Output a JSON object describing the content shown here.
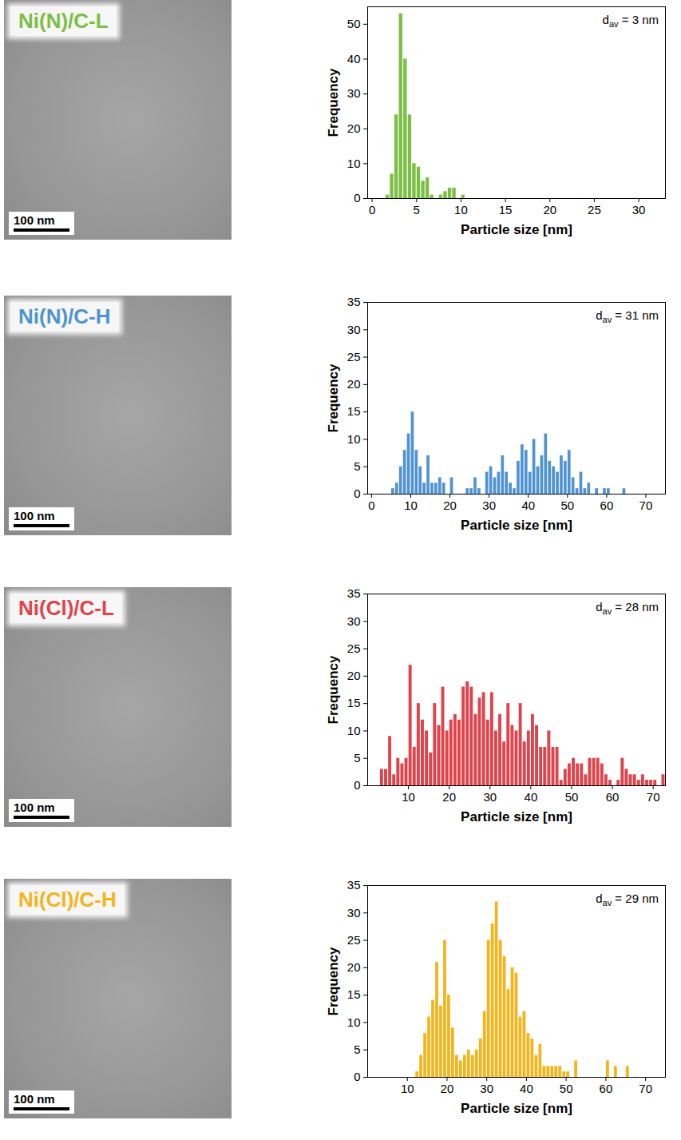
{
  "chart_data": [
    {
      "type": "histogram",
      "title": "Ni(N)/C-L",
      "scale_bar": "100 nm",
      "color": "#7cbf45",
      "x_label": "Particle size [nm]",
      "y_label": "Frequency",
      "annotation": {
        "text": "d",
        "subscript": "av",
        "relation": "=",
        "value": 3,
        "unit": "nm"
      },
      "bins": [
        1.5,
        2.0,
        2.5,
        3.0,
        3.5,
        4.0,
        4.5,
        5.0,
        5.5,
        6.0,
        6.5,
        7.0,
        7.5,
        8.0,
        8.5,
        9.0,
        9.5,
        10.0,
        10.5
      ],
      "values": [
        1,
        7,
        24,
        53,
        40,
        24,
        10,
        9,
        5,
        6,
        1,
        0,
        1,
        2,
        3,
        3,
        0,
        1
      ],
      "xlim": [
        -0.5,
        33
      ],
      "xticks": [
        0,
        5,
        10,
        15,
        20,
        25,
        30
      ],
      "ylim": [
        0,
        55
      ],
      "yticks": [
        0,
        10,
        20,
        30,
        40,
        50
      ]
    },
    {
      "type": "histogram",
      "title": "Ni(N)/C-H",
      "scale_bar": "100 nm",
      "color": "#4f93d2",
      "x_label": "Particle size [nm]",
      "y_label": "Frequency",
      "annotation": {
        "text": "d",
        "subscript": "av",
        "relation": "=",
        "value": 31,
        "unit": "nm"
      },
      "bins": [
        5,
        6,
        7,
        8,
        9,
        10,
        11,
        12,
        13,
        14,
        15,
        16,
        17,
        18,
        19,
        20,
        21,
        22,
        23,
        24,
        25,
        26,
        27,
        28,
        29,
        30,
        31,
        32,
        33,
        34,
        35,
        36,
        37,
        38,
        39,
        40,
        41,
        42,
        43,
        44,
        45,
        46,
        47,
        48,
        49,
        50,
        51,
        52,
        53,
        54,
        55,
        56,
        57,
        58,
        59,
        60,
        61,
        62,
        63,
        64,
        65
      ],
      "values": [
        1,
        2,
        5,
        8,
        11,
        15,
        8,
        5,
        2,
        7,
        2,
        2,
        3,
        2,
        0,
        3,
        0,
        0,
        0,
        1,
        1,
        3,
        1,
        0,
        4,
        5,
        3,
        4,
        7,
        4,
        2,
        1,
        6,
        9,
        8,
        4,
        10,
        5,
        7,
        11,
        6,
        5,
        4,
        7,
        6,
        8,
        3,
        1,
        4,
        1,
        2,
        0,
        1,
        0,
        1,
        1,
        0,
        0,
        0,
        1
      ],
      "xlim": [
        -1,
        75
      ],
      "xticks": [
        0,
        10,
        20,
        30,
        40,
        50,
        60,
        70
      ],
      "ylim": [
        0,
        35
      ],
      "yticks": [
        0,
        5,
        10,
        15,
        20,
        25,
        30,
        35
      ]
    },
    {
      "type": "histogram",
      "title": "Ni(Cl)/C-L",
      "scale_bar": "100 nm",
      "color": "#e0434b",
      "x_label": "Particle size [nm]",
      "y_label": "Frequency",
      "annotation": {
        "text": "d",
        "subscript": "av",
        "relation": "=",
        "value": 28,
        "unit": "nm"
      },
      "bins": [
        3,
        4,
        5,
        6,
        7,
        8,
        9,
        10,
        11,
        12,
        13,
        14,
        15,
        16,
        17,
        18,
        19,
        20,
        21,
        22,
        23,
        24,
        25,
        26,
        27,
        28,
        29,
        30,
        31,
        32,
        33,
        34,
        35,
        36,
        37,
        38,
        39,
        40,
        41,
        42,
        43,
        44,
        45,
        46,
        47,
        48,
        49,
        50,
        51,
        52,
        53,
        54,
        55,
        56,
        57,
        58,
        59,
        60,
        61,
        62,
        63,
        64,
        65,
        66,
        67,
        68,
        69,
        70,
        71,
        72,
        73
      ],
      "values": [
        3,
        3,
        9,
        2,
        5,
        4,
        5,
        22,
        7,
        15,
        12,
        10,
        6,
        15,
        11,
        18,
        10,
        12,
        13,
        12,
        18,
        19,
        18,
        13,
        16,
        17,
        12,
        17,
        10,
        13,
        8,
        15,
        11,
        10,
        15,
        8,
        10,
        13,
        11,
        7,
        7,
        10,
        7,
        7,
        1,
        3,
        4,
        5,
        4,
        4,
        2,
        5,
        5,
        5,
        4,
        2,
        1,
        0,
        1,
        5,
        3,
        2,
        2,
        1,
        2,
        1,
        1,
        1,
        0,
        2
      ],
      "xlim": [
        0,
        73
      ],
      "xticks": [
        10,
        20,
        30,
        40,
        50,
        60,
        70
      ],
      "ylim": [
        0,
        35
      ],
      "yticks": [
        0,
        5,
        10,
        15,
        20,
        25,
        30,
        35
      ]
    },
    {
      "type": "histogram",
      "title": "Ni(Cl)/C-H",
      "scale_bar": "100 nm",
      "color": "#f4b41a",
      "x_label": "Particle size [nm]",
      "y_label": "Frequency",
      "annotation": {
        "text": "d",
        "subscript": "av",
        "relation": "=",
        "value": 29,
        "unit": "nm"
      },
      "bins": [
        12,
        13,
        14,
        15,
        16,
        17,
        18,
        19,
        20,
        21,
        22,
        23,
        24,
        25,
        26,
        27,
        28,
        29,
        30,
        31,
        32,
        33,
        34,
        35,
        36,
        37,
        38,
        39,
        40,
        41,
        42,
        43,
        44,
        45,
        46,
        47,
        48,
        49,
        50,
        51,
        52,
        53,
        54,
        55,
        56,
        57,
        58,
        59,
        60,
        61,
        62,
        63,
        64,
        65,
        66
      ],
      "values": [
        1,
        4,
        8,
        11,
        14,
        21,
        13,
        25,
        15,
        9,
        4,
        3,
        4,
        5,
        4,
        5,
        7,
        12,
        25,
        28,
        32,
        25,
        22,
        16,
        20,
        19,
        11,
        12,
        8,
        7,
        4,
        6,
        2,
        2,
        2,
        2,
        2,
        1,
        1,
        0,
        3,
        0,
        0,
        0,
        0,
        0,
        0,
        0,
        3,
        0,
        2,
        0,
        0,
        2
      ],
      "xlim": [
        0,
        75
      ],
      "xticks": [
        10,
        20,
        30,
        40,
        50,
        60,
        70
      ],
      "ylim": [
        0,
        35
      ],
      "yticks": [
        0,
        5,
        10,
        15,
        20,
        25,
        30,
        35
      ]
    }
  ]
}
